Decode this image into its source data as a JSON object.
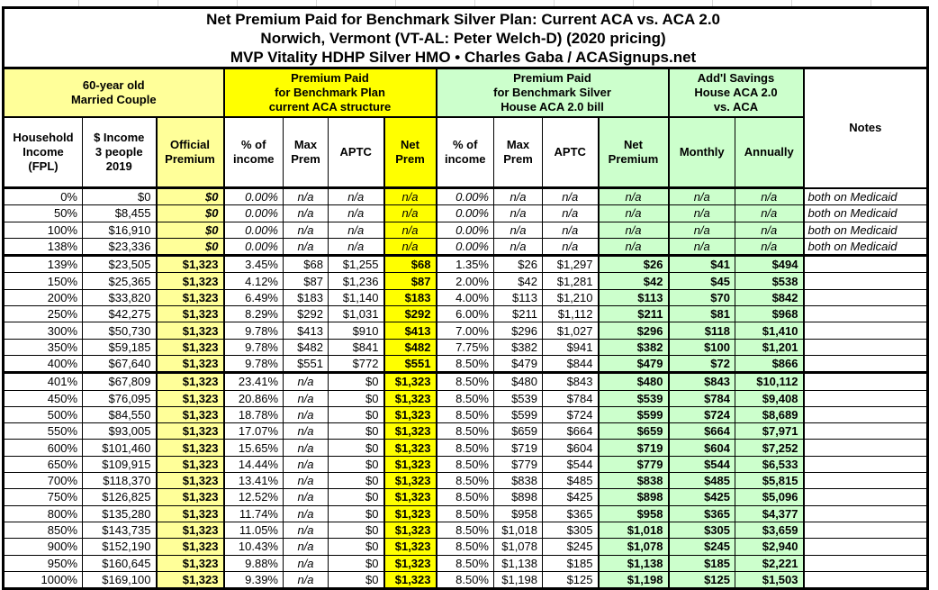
{
  "title": {
    "line1": "Net Premium Paid for Benchmark Silver Plan: Current ACA vs. ACA 2.0",
    "line2": "Norwich, Vermont (VT-AL: Peter Welch-D) (2020 pricing)",
    "line3": "MVP Vitality HDHP Silver HMO • Charles Gaba / ACASignups.net"
  },
  "groups": {
    "household": "60-year old\nMarried Couple",
    "current_aca": "Premium Paid\nfor Benchmark Plan\ncurrent ACA structure",
    "aca20": "Premium Paid\nfor Benchmark Silver\nHouse ACA 2.0 bill",
    "savings": "Add'l Savings\nHouse ACA 2.0\nvs. ACA",
    "notes": "Notes"
  },
  "columns": [
    "Household\nIncome\n(FPL)",
    "$ Income\n3 people\n2019",
    "Official\nPremium",
    "% of\nincome",
    "Max\nPrem",
    "APTC",
    "Net\nPrem",
    "% of\nincome",
    "Max\nPrem",
    "APTC",
    "Net\nPremium",
    "Monthly",
    "Annually"
  ],
  "column_keys": [
    "fpl",
    "income",
    "official-premium",
    "aca-pct-income",
    "aca-max-prem",
    "aca-aptc",
    "aca-net-prem",
    "aca20-pct-income",
    "aca20-max-prem",
    "aca20-aptc",
    "aca20-net-premium",
    "savings-monthly",
    "savings-annually",
    "notes"
  ],
  "colors": {
    "pale_yellow": "#FFFF99",
    "bright_yellow": "#FFFF00",
    "pale_green": "#CCFFCC",
    "grid": "#000000"
  },
  "rows": [
    {
      "medicaid": true,
      "section_end": false,
      "cells": [
        "0%",
        "$0",
        "$0",
        "0.00%",
        "n/a",
        "n/a",
        "n/a",
        "0.00%",
        "n/a",
        "n/a",
        "n/a",
        "n/a",
        "n/a",
        "both on Medicaid"
      ]
    },
    {
      "medicaid": true,
      "section_end": false,
      "cells": [
        "50%",
        "$8,455",
        "$0",
        "0.00%",
        "n/a",
        "n/a",
        "n/a",
        "0.00%",
        "n/a",
        "n/a",
        "n/a",
        "n/a",
        "n/a",
        "both on Medicaid"
      ]
    },
    {
      "medicaid": true,
      "section_end": false,
      "cells": [
        "100%",
        "$16,910",
        "$0",
        "0.00%",
        "n/a",
        "n/a",
        "n/a",
        "0.00%",
        "n/a",
        "n/a",
        "n/a",
        "n/a",
        "n/a",
        "both on Medicaid"
      ]
    },
    {
      "medicaid": true,
      "section_end": true,
      "cells": [
        "138%",
        "$23,336",
        "$0",
        "0.00%",
        "n/a",
        "n/a",
        "n/a",
        "0.00%",
        "n/a",
        "n/a",
        "n/a",
        "n/a",
        "n/a",
        "both on Medicaid"
      ]
    },
    {
      "medicaid": false,
      "section_end": false,
      "cells": [
        "139%",
        "$23,505",
        "$1,323",
        "3.45%",
        "$68",
        "$1,255",
        "$68",
        "1.35%",
        "$26",
        "$1,297",
        "$26",
        "$41",
        "$494",
        ""
      ]
    },
    {
      "medicaid": false,
      "section_end": false,
      "cells": [
        "150%",
        "$25,365",
        "$1,323",
        "4.12%",
        "$87",
        "$1,236",
        "$87",
        "2.00%",
        "$42",
        "$1,281",
        "$42",
        "$45",
        "$538",
        ""
      ]
    },
    {
      "medicaid": false,
      "section_end": false,
      "cells": [
        "200%",
        "$33,820",
        "$1,323",
        "6.49%",
        "$183",
        "$1,140",
        "$183",
        "4.00%",
        "$113",
        "$1,210",
        "$113",
        "$70",
        "$842",
        ""
      ]
    },
    {
      "medicaid": false,
      "section_end": false,
      "cells": [
        "250%",
        "$42,275",
        "$1,323",
        "8.29%",
        "$292",
        "$1,031",
        "$292",
        "6.00%",
        "$211",
        "$1,112",
        "$211",
        "$81",
        "$968",
        ""
      ]
    },
    {
      "medicaid": false,
      "section_end": false,
      "cells": [
        "300%",
        "$50,730",
        "$1,323",
        "9.78%",
        "$413",
        "$910",
        "$413",
        "7.00%",
        "$296",
        "$1,027",
        "$296",
        "$118",
        "$1,410",
        ""
      ]
    },
    {
      "medicaid": false,
      "section_end": false,
      "cells": [
        "350%",
        "$59,185",
        "$1,323",
        "9.78%",
        "$482",
        "$841",
        "$482",
        "7.75%",
        "$382",
        "$941",
        "$382",
        "$100",
        "$1,201",
        ""
      ]
    },
    {
      "medicaid": false,
      "section_end": true,
      "cells": [
        "400%",
        "$67,640",
        "$1,323",
        "9.78%",
        "$551",
        "$772",
        "$551",
        "8.50%",
        "$479",
        "$844",
        "$479",
        "$72",
        "$866",
        ""
      ]
    },
    {
      "medicaid": false,
      "section_end": false,
      "cells": [
        "401%",
        "$67,809",
        "$1,323",
        "23.41%",
        "n/a",
        "$0",
        "$1,323",
        "8.50%",
        "$480",
        "$843",
        "$480",
        "$843",
        "$10,112",
        ""
      ]
    },
    {
      "medicaid": false,
      "section_end": false,
      "cells": [
        "450%",
        "$76,095",
        "$1,323",
        "20.86%",
        "n/a",
        "$0",
        "$1,323",
        "8.50%",
        "$539",
        "$784",
        "$539",
        "$784",
        "$9,408",
        ""
      ]
    },
    {
      "medicaid": false,
      "section_end": false,
      "cells": [
        "500%",
        "$84,550",
        "$1,323",
        "18.78%",
        "n/a",
        "$0",
        "$1,323",
        "8.50%",
        "$599",
        "$724",
        "$599",
        "$724",
        "$8,689",
        ""
      ]
    },
    {
      "medicaid": false,
      "section_end": false,
      "cells": [
        "550%",
        "$93,005",
        "$1,323",
        "17.07%",
        "n/a",
        "$0",
        "$1,323",
        "8.50%",
        "$659",
        "$664",
        "$659",
        "$664",
        "$7,971",
        ""
      ]
    },
    {
      "medicaid": false,
      "section_end": false,
      "cells": [
        "600%",
        "$101,460",
        "$1,323",
        "15.65%",
        "n/a",
        "$0",
        "$1,323",
        "8.50%",
        "$719",
        "$604",
        "$719",
        "$604",
        "$7,252",
        ""
      ]
    },
    {
      "medicaid": false,
      "section_end": false,
      "cells": [
        "650%",
        "$109,915",
        "$1,323",
        "14.44%",
        "n/a",
        "$0",
        "$1,323",
        "8.50%",
        "$779",
        "$544",
        "$779",
        "$544",
        "$6,533",
        ""
      ]
    },
    {
      "medicaid": false,
      "section_end": false,
      "cells": [
        "700%",
        "$118,370",
        "$1,323",
        "13.41%",
        "n/a",
        "$0",
        "$1,323",
        "8.50%",
        "$838",
        "$485",
        "$838",
        "$485",
        "$5,815",
        ""
      ]
    },
    {
      "medicaid": false,
      "section_end": false,
      "cells": [
        "750%",
        "$126,825",
        "$1,323",
        "12.52%",
        "n/a",
        "$0",
        "$1,323",
        "8.50%",
        "$898",
        "$425",
        "$898",
        "$425",
        "$5,096",
        ""
      ]
    },
    {
      "medicaid": false,
      "section_end": false,
      "cells": [
        "800%",
        "$135,280",
        "$1,323",
        "11.74%",
        "n/a",
        "$0",
        "$1,323",
        "8.50%",
        "$958",
        "$365",
        "$958",
        "$365",
        "$4,377",
        ""
      ]
    },
    {
      "medicaid": false,
      "section_end": false,
      "cells": [
        "850%",
        "$143,735",
        "$1,323",
        "11.05%",
        "n/a",
        "$0",
        "$1,323",
        "8.50%",
        "$1,018",
        "$305",
        "$1,018",
        "$305",
        "$3,659",
        ""
      ]
    },
    {
      "medicaid": false,
      "section_end": false,
      "cells": [
        "900%",
        "$152,190",
        "$1,323",
        "10.43%",
        "n/a",
        "$0",
        "$1,323",
        "8.50%",
        "$1,078",
        "$245",
        "$1,078",
        "$245",
        "$2,940",
        ""
      ]
    },
    {
      "medicaid": false,
      "section_end": false,
      "cells": [
        "950%",
        "$160,645",
        "$1,323",
        "9.88%",
        "n/a",
        "$0",
        "$1,323",
        "8.50%",
        "$1,138",
        "$185",
        "$1,138",
        "$185",
        "$2,221",
        ""
      ]
    },
    {
      "medicaid": false,
      "section_end": false,
      "cells": [
        "1000%",
        "$169,100",
        "$1,323",
        "9.39%",
        "n/a",
        "$0",
        "$1,323",
        "8.50%",
        "$1,198",
        "$125",
        "$1,198",
        "$125",
        "$1,503",
        ""
      ]
    }
  ]
}
